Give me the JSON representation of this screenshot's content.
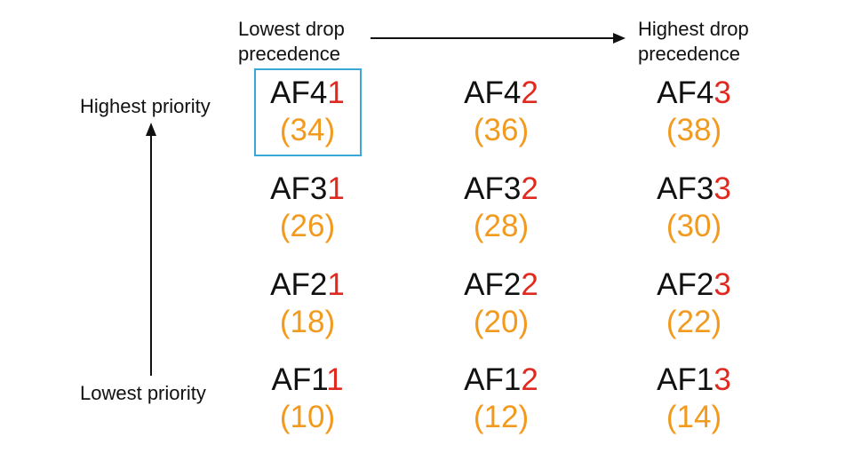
{
  "labels": {
    "top_left": [
      "Lowest drop",
      "precedence"
    ],
    "top_right": [
      "Highest drop",
      "precedence"
    ],
    "highest_priority": "Highest priority",
    "lowest_priority": "Lowest priority"
  },
  "colors": {
    "class_text": "#111111",
    "drop_digit": "#e02a1f",
    "dscp_value": "#f29a1e",
    "highlight_border": "#3aa7d6",
    "arrow": "#111111"
  },
  "grid": {
    "rows": [
      {
        "cells": [
          {
            "prefix": "AF4",
            "drop": "1",
            "dscp": "(34)"
          },
          {
            "prefix": "AF4",
            "drop": "2",
            "dscp": "(36)"
          },
          {
            "prefix": "AF4",
            "drop": "3",
            "dscp": "(38)"
          }
        ]
      },
      {
        "cells": [
          {
            "prefix": "AF3",
            "drop": "1",
            "dscp": "(26)"
          },
          {
            "prefix": "AF3",
            "drop": "2",
            "dscp": "(28)"
          },
          {
            "prefix": "AF3",
            "drop": "3",
            "dscp": "(30)"
          }
        ]
      },
      {
        "cells": [
          {
            "prefix": "AF2",
            "drop": "1",
            "dscp": "(18)"
          },
          {
            "prefix": "AF2",
            "drop": "2",
            "dscp": "(20)"
          },
          {
            "prefix": "AF2",
            "drop": "3",
            "dscp": "(22)"
          }
        ]
      },
      {
        "cells": [
          {
            "prefix": "AF1",
            "drop": "1",
            "dscp": "(10)"
          },
          {
            "prefix": "AF1",
            "drop": "2",
            "dscp": "(12)"
          },
          {
            "prefix": "AF1",
            "drop": "3",
            "dscp": "(14)"
          }
        ]
      }
    ]
  }
}
